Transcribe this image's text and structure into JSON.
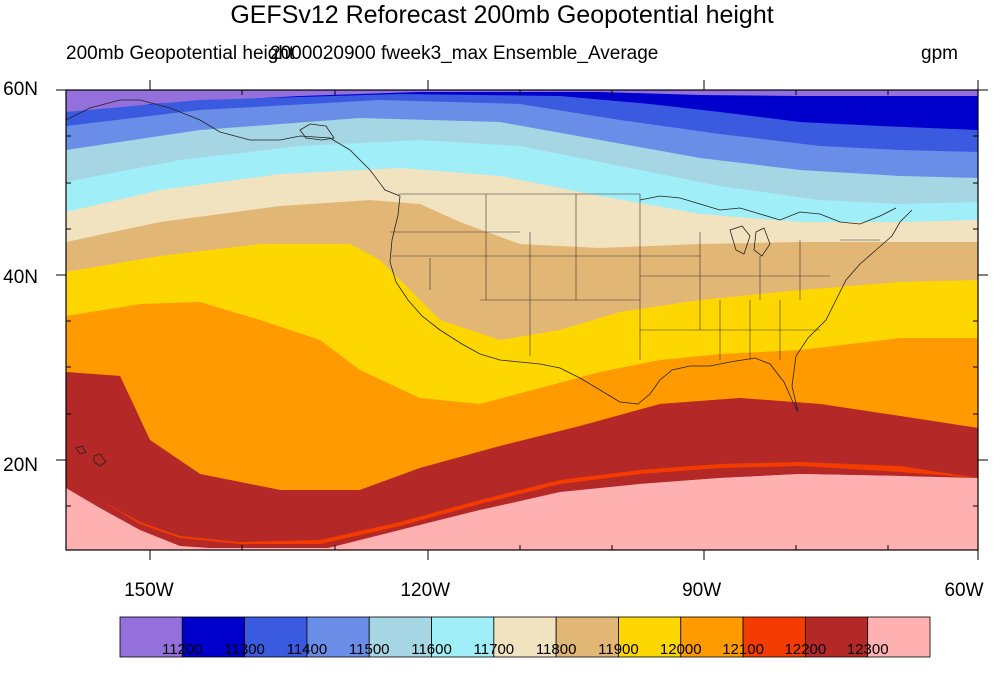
{
  "header": {
    "title": "GEFSv12 Reforecast 200mb Geopotential height",
    "left_string": "200mb Geopotential height",
    "center_string": "2000020900 fweek3_max Ensemble_Average",
    "right_string": "gpm"
  },
  "map": {
    "projection": "cylindrical-equidistant",
    "lon_range": [
      -159,
      -60
    ],
    "lat_range": [
      11,
      60
    ],
    "lat_ticks": [
      {
        "value": 60,
        "label": "60N"
      },
      {
        "value": 40,
        "label": "40N"
      },
      {
        "value": 20,
        "label": "20N"
      }
    ],
    "lon_ticks": [
      {
        "value": -150,
        "label": "150W"
      },
      {
        "value": -120,
        "label": "120W"
      },
      {
        "value": -90,
        "label": "90W"
      },
      {
        "value": -60,
        "label": "60W"
      }
    ],
    "field": "200mb geopotential height",
    "units": "gpm",
    "boundaries": [
      "coastlines",
      "US state borders",
      "country borders"
    ]
  },
  "colorbar": {
    "levels": [
      "11200",
      "11300",
      "11400",
      "11500",
      "11600",
      "11700",
      "11800",
      "11900",
      "12000",
      "12100",
      "12200",
      "12300"
    ],
    "colors": [
      "#9370db",
      "#0000cd",
      "#3a5ae0",
      "#6a8ee8",
      "#a6d5e3",
      "#a0eef7",
      "#f2e3c0",
      "#e2b776",
      "#ffd700",
      "#ff9a00",
      "#f53c00",
      "#b52828",
      "#ffb0b0"
    ]
  }
}
